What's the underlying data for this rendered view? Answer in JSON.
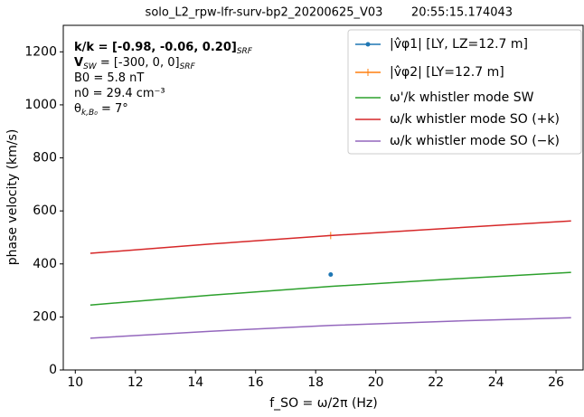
{
  "chart_data": {
    "type": "line",
    "title": "solo_L2_rpw-lfr-surv-bp2_20200625_V03",
    "subtitle": "20:55:15.174043",
    "x_label": "f_SO = ω/2π  (Hz)",
    "y_label": "phase velocity (km/s)",
    "xlim": [
      9.6,
      26.9
    ],
    "ylim": [
      0,
      1300
    ],
    "xticks": [
      10,
      12,
      14,
      16,
      18,
      20,
      22,
      24,
      26
    ],
    "yticks": [
      0,
      200,
      400,
      600,
      800,
      1000,
      1200
    ],
    "legend": "upper right",
    "annotations": [
      {
        "text": "k/k = [-0.98, -0.06, 0.20]",
        "sub": "SRF"
      },
      {
        "text": "V",
        "sub": "SW",
        "rest": " = [-300, 0, 0]",
        "sub2": "SRF"
      },
      {
        "text": "B0 = 5.8 nT"
      },
      {
        "text": "n0 = 29.4 cm⁻³"
      },
      {
        "text": "θ",
        "sub": "k,B₀",
        "rest": " = 7°"
      }
    ],
    "series": [
      {
        "name": "|v̂φ1|   [LY, LZ=12.7 m]",
        "color": "#1f77b4",
        "marker": "dot",
        "x": [
          18.5
        ],
        "values": [
          360
        ]
      },
      {
        "name": "|v̂φ2|   [LY=12.7 m]",
        "color": "#ff7f0e",
        "marker": "plus",
        "x": [
          18.5
        ],
        "values": [
          507
        ]
      },
      {
        "name": "ω'/k whistler mode SW",
        "color": "#2ca02c",
        "x": [
          10.5,
          14.5,
          18.5,
          22.5,
          26.5
        ],
        "values": [
          245,
          282,
          315,
          343,
          368
        ]
      },
      {
        "name": "ω/k whistler mode SO (+k)",
        "color": "#d62728",
        "x": [
          10.5,
          14.5,
          18.5,
          22.5,
          26.5
        ],
        "values": [
          440,
          475,
          507,
          535,
          562
        ]
      },
      {
        "name": "ω/k whistler mode SO (−k)",
        "color": "#9467bd",
        "x": [
          10.5,
          14.5,
          18.5,
          22.5,
          26.5
        ],
        "values": [
          120,
          146,
          168,
          184,
          197
        ]
      }
    ]
  }
}
